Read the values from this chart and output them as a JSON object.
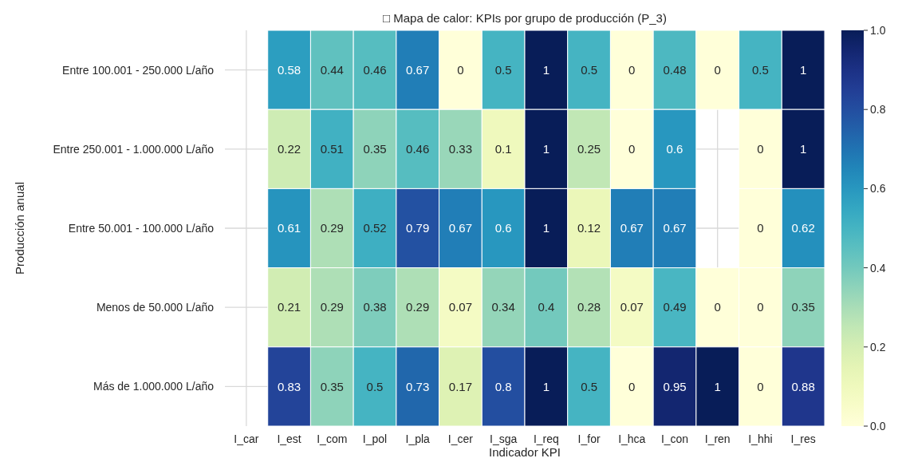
{
  "chart_data": {
    "type": "heatmap",
    "title": "□ Mapa de calor: KPIs por grupo de producción (P_3)",
    "xlabel": "Indicador KPI",
    "ylabel": "Producción anual",
    "categories": [
      "I_car",
      "I_est",
      "I_com",
      "I_pol",
      "I_pla",
      "I_cer",
      "I_sga",
      "I_req",
      "I_for",
      "I_hca",
      "I_con",
      "I_ren",
      "I_hhi",
      "I_res"
    ],
    "y_categories": [
      "Entre 100.001 - 250.000 L/año",
      "Entre 250.001 - 1.000.000 L/año",
      "Entre 50.001 - 100.000 L/año",
      "Menos de 50.000 L/año",
      "Más de 1.000.000 L/año"
    ],
    "cells": [
      [
        null,
        0.58,
        0.44,
        0.46,
        0.67,
        0,
        0.5,
        1,
        0.5,
        0,
        0.48,
        0,
        0.5,
        1
      ],
      [
        null,
        0.22,
        0.51,
        0.35,
        0.46,
        0.33,
        0.1,
        1,
        0.25,
        0,
        0.6,
        null,
        0,
        1
      ],
      [
        null,
        0.61,
        0.29,
        0.52,
        0.79,
        0.67,
        0.6,
        1,
        0.12,
        0.67,
        0.67,
        null,
        0,
        0.62
      ],
      [
        null,
        0.21,
        0.29,
        0.38,
        0.29,
        0.07,
        0.34,
        0.4,
        0.28,
        0.07,
        0.49,
        0,
        0,
        0.35
      ],
      [
        null,
        0.83,
        0.35,
        0.5,
        0.73,
        0.17,
        0.8,
        1,
        0.5,
        0,
        0.95,
        1,
        0,
        0.88
      ]
    ],
    "clim": [
      0,
      1
    ],
    "cticks": [
      {
        "value": 0,
        "label": "0.0"
      },
      {
        "value": 0.2,
        "label": "0.2"
      },
      {
        "value": 0.4,
        "label": "0.4"
      },
      {
        "value": 0.6,
        "label": "0.6"
      },
      {
        "value": 0.8,
        "label": "0.8"
      },
      {
        "value": 1,
        "label": "1.0"
      }
    ],
    "data_labels": true,
    "grid": true
  }
}
